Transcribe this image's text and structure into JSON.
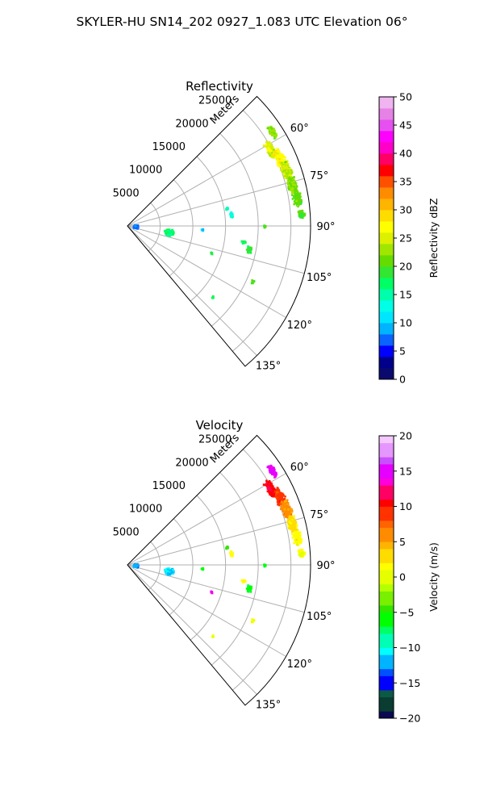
{
  "figure": {
    "suptitle": "SKYLER-HU  SN14_202  0927_1.083 UTC Elevation 06°"
  },
  "chart_data": [
    {
      "type": "polar-sector",
      "title": "Reflectivity",
      "radial_label": "Meters",
      "r_ticks": [
        5000,
        10000,
        15000,
        20000,
        25000
      ],
      "r_tick_labels": [
        "5000",
        "10000",
        "15000",
        "20000",
        "25000"
      ],
      "r_max": 28000,
      "theta_range_deg": [
        45,
        140
      ],
      "theta_ticks_deg": [
        60,
        75,
        90,
        105,
        120,
        135
      ],
      "theta_tick_labels": [
        "60°",
        "75°",
        "90°",
        "105°",
        "120°",
        "135°"
      ],
      "grid": true,
      "colorbar": {
        "label": "Reflectivity dBZ",
        "min": 0,
        "max": 50,
        "ticks": [
          0,
          5,
          10,
          15,
          20,
          25,
          30,
          35,
          40,
          45,
          50
        ],
        "tick_labels": [
          "0",
          "5",
          "10",
          "15",
          "20",
          "25",
          "30",
          "35",
          "40",
          "45",
          "50"
        ]
      },
      "echo_clusters": [
        {
          "az_deg": 57,
          "range_m": 26400,
          "spread_az": 3,
          "spread_range": 600,
          "value": 22
        },
        {
          "az_deg": 62,
          "range_m": 24800,
          "spread_az": 4,
          "spread_range": 700,
          "value": 25
        },
        {
          "az_deg": 66,
          "range_m": 25500,
          "spread_az": 4,
          "spread_range": 800,
          "value": 27
        },
        {
          "az_deg": 71,
          "range_m": 25800,
          "spread_az": 4,
          "spread_range": 900,
          "value": 24
        },
        {
          "az_deg": 76,
          "range_m": 26000,
          "spread_az": 4,
          "spread_range": 900,
          "value": 22
        },
        {
          "az_deg": 81,
          "range_m": 26300,
          "spread_az": 3,
          "spread_range": 800,
          "value": 21
        },
        {
          "az_deg": 86,
          "range_m": 26700,
          "spread_az": 2,
          "spread_range": 600,
          "value": 20
        },
        {
          "az_deg": 99,
          "range_m": 6500,
          "spread_az": 5,
          "spread_range": 900,
          "value": 17
        },
        {
          "az_deg": 96,
          "range_m": 1300,
          "spread_az": 12,
          "spread_range": 400,
          "value": 8
        },
        {
          "az_deg": 101,
          "range_m": 19000,
          "spread_az": 2,
          "spread_range": 500,
          "value": 19
        },
        {
          "az_deg": 98,
          "range_m": 18000,
          "spread_az": 1,
          "spread_range": 500,
          "value": 18
        },
        {
          "az_deg": 84,
          "range_m": 16000,
          "spread_az": 2,
          "spread_range": 300,
          "value": 14
        },
        {
          "az_deg": 80,
          "range_m": 15500,
          "spread_az": 1,
          "spread_range": 250,
          "value": 14
        },
        {
          "az_deg": 93,
          "range_m": 11500,
          "spread_az": 1,
          "spread_range": 200,
          "value": 10
        },
        {
          "az_deg": 90,
          "range_m": 21000,
          "spread_az": 1,
          "spread_range": 200,
          "value": 20
        },
        {
          "az_deg": 114,
          "range_m": 21000,
          "spread_az": 1,
          "spread_range": 300,
          "value": 20
        },
        {
          "az_deg": 108,
          "range_m": 13500,
          "spread_az": 1,
          "spread_range": 200,
          "value": 18
        },
        {
          "az_deg": 130,
          "range_m": 17000,
          "spread_az": 1,
          "spread_range": 200,
          "value": 18
        }
      ]
    },
    {
      "type": "polar-sector",
      "title": "Velocity",
      "radial_label": "Meters",
      "r_ticks": [
        5000,
        10000,
        15000,
        20000,
        25000
      ],
      "r_tick_labels": [
        "5000",
        "10000",
        "15000",
        "20000",
        "25000"
      ],
      "r_max": 28000,
      "theta_range_deg": [
        45,
        140
      ],
      "theta_ticks_deg": [
        60,
        75,
        90,
        105,
        120,
        135
      ],
      "theta_tick_labels": [
        "60°",
        "75°",
        "90°",
        "105°",
        "120°",
        "135°"
      ],
      "grid": true,
      "colorbar": {
        "label": "Velocity (m/s)",
        "min": -20,
        "max": 20,
        "ticks": [
          -20,
          -15,
          -10,
          -5,
          0,
          5,
          10,
          15,
          20
        ],
        "tick_labels": [
          "−20",
          "−15",
          "−10",
          "−5",
          "0",
          "5",
          "10",
          "15",
          "20"
        ]
      },
      "echo_clusters": [
        {
          "az_deg": 57,
          "range_m": 26400,
          "spread_az": 3,
          "spread_range": 600,
          "value": 15
        },
        {
          "az_deg": 62,
          "range_m": 24800,
          "spread_az": 4,
          "spread_range": 700,
          "value": 11
        },
        {
          "az_deg": 66,
          "range_m": 25500,
          "spread_az": 4,
          "spread_range": 800,
          "value": 9
        },
        {
          "az_deg": 71,
          "range_m": 25800,
          "spread_az": 4,
          "spread_range": 900,
          "value": 6
        },
        {
          "az_deg": 76,
          "range_m": 26000,
          "spread_az": 4,
          "spread_range": 900,
          "value": 3
        },
        {
          "az_deg": 81,
          "range_m": 26300,
          "spread_az": 3,
          "spread_range": 800,
          "value": 2
        },
        {
          "az_deg": 86,
          "range_m": 26700,
          "spread_az": 2,
          "spread_range": 600,
          "value": 1
        },
        {
          "az_deg": 99,
          "range_m": 6500,
          "spread_az": 5,
          "spread_range": 900,
          "value": -11
        },
        {
          "az_deg": 96,
          "range_m": 1300,
          "spread_az": 12,
          "spread_range": 400,
          "value": -12
        },
        {
          "az_deg": 101,
          "range_m": 19000,
          "spread_az": 2,
          "spread_range": 500,
          "value": -6
        },
        {
          "az_deg": 98,
          "range_m": 18000,
          "spread_az": 1,
          "spread_range": 500,
          "value": 2
        },
        {
          "az_deg": 84,
          "range_m": 16000,
          "spread_az": 2,
          "spread_range": 300,
          "value": 2
        },
        {
          "az_deg": 80,
          "range_m": 15500,
          "spread_az": 1,
          "spread_range": 250,
          "value": -4
        },
        {
          "az_deg": 93,
          "range_m": 11500,
          "spread_az": 1,
          "spread_range": 200,
          "value": -6
        },
        {
          "az_deg": 90,
          "range_m": 21000,
          "spread_az": 1,
          "spread_range": 200,
          "value": -6
        },
        {
          "az_deg": 114,
          "range_m": 21000,
          "spread_az": 1,
          "spread_range": 300,
          "value": 1
        },
        {
          "az_deg": 108,
          "range_m": 13500,
          "spread_az": 1,
          "spread_range": 200,
          "value": 14
        },
        {
          "az_deg": 130,
          "range_m": 17000,
          "spread_az": 1,
          "spread_range": 200,
          "value": 1
        }
      ]
    }
  ]
}
